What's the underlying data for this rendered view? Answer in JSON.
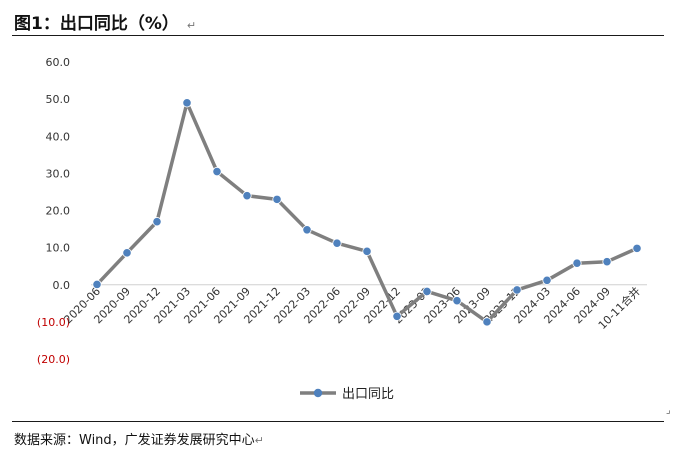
{
  "title": "图1：出口同比（%）",
  "title_mark": "↵",
  "source": "数据来源：Wind，广发证券发展研究中心",
  "source_mark": "↵",
  "chart_data": {
    "type": "line",
    "categories": [
      "2020-06",
      "2020-09",
      "2020-12",
      "2021-03",
      "2021-06",
      "2021-09",
      "2021-12",
      "2022-03",
      "2022-06",
      "2022-09",
      "2022-12",
      "2023-03",
      "2023-06",
      "2023-09",
      "2023-12",
      "2024-03",
      "2024-06",
      "2024-09",
      "10-11合并"
    ],
    "series": [
      {
        "name": "出口同比",
        "values": [
          0.1,
          8.6,
          17.0,
          49.0,
          30.5,
          24.0,
          23.0,
          14.8,
          11.2,
          9.0,
          -8.5,
          -1.8,
          -4.3,
          -10.0,
          -1.4,
          1.2,
          5.8,
          6.2,
          9.8
        ]
      }
    ],
    "ylim": [
      -20,
      60
    ],
    "yticks": [
      -20,
      -10,
      0,
      10,
      20,
      30,
      40,
      50,
      60
    ],
    "ytick_labels": [
      "(20.0)",
      "(10.0)",
      "0.0",
      "10.0",
      "20.0",
      "30.0",
      "40.0",
      "50.0",
      "60.0"
    ],
    "negative_tick_color": "#c00000",
    "tick_color": "#333333",
    "line_color": "#7f7f7f",
    "marker_color": "#4f81bd",
    "legend_position": "bottom-center",
    "grid": false
  }
}
